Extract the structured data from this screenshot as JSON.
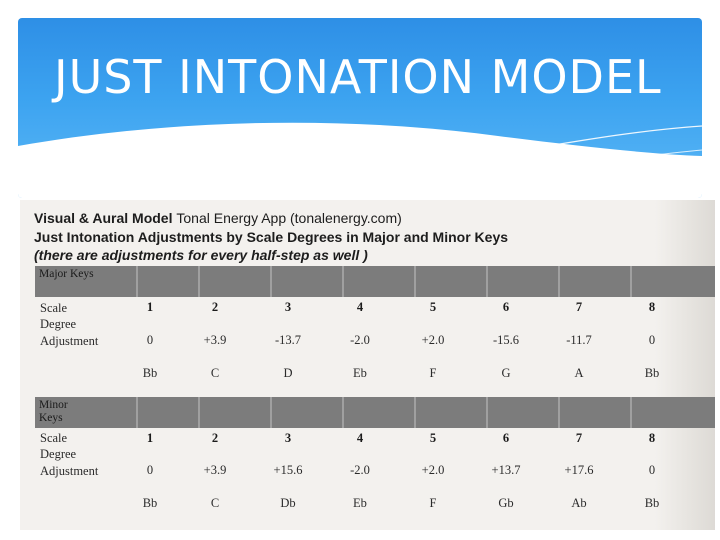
{
  "slide": {
    "title": "JUST INTONATION MODEL"
  },
  "document": {
    "heading_line1_bold": "Visual & Aural Model",
    "heading_line1_light": "Tonal Energy App (tonalenergy.com)",
    "heading_line2": "Just Intonation Adjustments by Scale Degrees in Major and Minor Keys",
    "heading_line3": "(there are adjustments for every half-step as well )"
  },
  "major": {
    "band_label": "Major Keys",
    "scale_label": "Scale\nDegree",
    "adjustment_label": "Adjustment",
    "degrees": [
      "1",
      "2",
      "3",
      "4",
      "5",
      "6",
      "7",
      "8"
    ],
    "adjustments": [
      "0",
      "+3.9",
      "-13.7",
      "-2.0",
      "+2.0",
      "-15.6",
      "-11.7",
      "0"
    ],
    "notes": [
      "Bb",
      "C",
      "D",
      "Eb",
      "F",
      "G",
      "A",
      "Bb"
    ]
  },
  "minor": {
    "band_label": "Minor\nKeys",
    "scale_label": "Scale\nDegree",
    "adjustment_label": "Adjustment",
    "degrees": [
      "1",
      "2",
      "3",
      "4",
      "5",
      "6",
      "7",
      "8"
    ],
    "adjustments": [
      "0",
      "+3.9",
      "+15.6",
      "-2.0",
      "+2.0",
      "+13.7",
      "+17.6",
      "0"
    ],
    "notes": [
      "Bb",
      "C",
      "Db",
      "Eb",
      "F",
      "Gb",
      "Ab",
      "Bb"
    ]
  },
  "colors": {
    "header_blue": "#3ca3f0",
    "band_gray": "#7c7c7c",
    "paper": "#f3f1ee"
  }
}
